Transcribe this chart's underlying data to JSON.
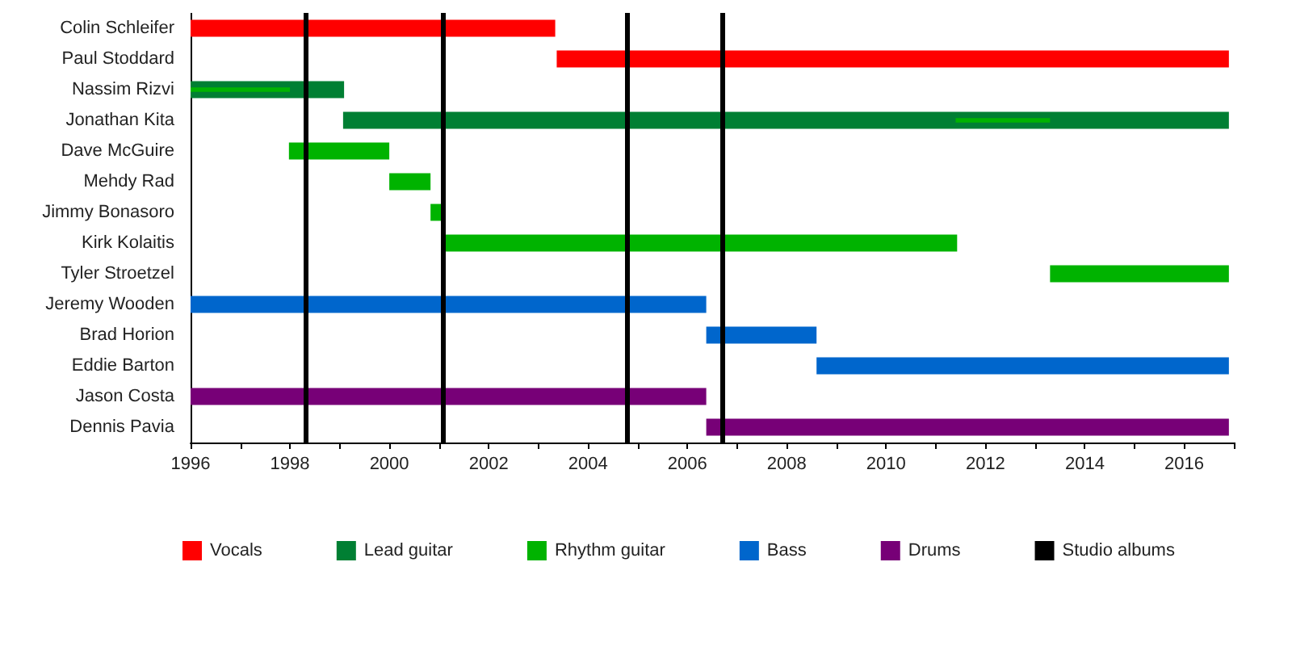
{
  "chart_data": {
    "type": "bar",
    "orientation": "horizontal",
    "categories": [
      "Colin Schleifer",
      "Paul Stoddard",
      "Nassim Rizvi",
      "Jonathan Kita",
      "Dave McGuire",
      "Mehdy Rad",
      "Jimmy Bonasoro",
      "Kirk Kolaitis",
      "Tyler Stroetzel",
      "Jeremy Wooden",
      "Brad Horion",
      "Eddie Barton",
      "Jason Costa",
      "Dennis Pavia"
    ],
    "series": [
      {
        "name": "Vocals",
        "color": "#ff0000",
        "base": [
          1996,
          2003.37,
          null,
          null,
          null,
          null,
          null,
          null,
          null,
          null,
          null,
          null,
          null,
          null
        ],
        "values": [
          7.34,
          13.53,
          null,
          null,
          null,
          null,
          null,
          null,
          null,
          null,
          null,
          null,
          null,
          null
        ]
      },
      {
        "name": "Lead guitar",
        "color": "#007f33",
        "base": [
          null,
          null,
          1996,
          1999.07,
          null,
          null,
          null,
          null,
          null,
          null,
          null,
          null,
          null,
          null
        ],
        "values": [
          null,
          null,
          3.09,
          17.83,
          null,
          null,
          null,
          null,
          null,
          null,
          null,
          null,
          null,
          null
        ]
      },
      {
        "name": "Rhythm guitar",
        "color": "#00b300",
        "base": [
          null,
          null,
          null,
          null,
          1997.98,
          2000.0,
          2000.83,
          2001.07,
          2013.3,
          null,
          null,
          null,
          null,
          null
        ],
        "values": [
          null,
          null,
          null,
          null,
          2.02,
          0.83,
          0.26,
          10.36,
          3.6,
          null,
          null,
          null,
          null,
          null
        ]
      },
      {
        "color": "#00b300",
        "base": [
          null,
          null,
          1996,
          2011.4,
          null,
          null,
          null,
          null,
          null,
          null,
          null,
          null,
          null,
          null
        ],
        "values": [
          null,
          null,
          2.0,
          1.9,
          null,
          null,
          null,
          null,
          null,
          null,
          null,
          null,
          null,
          null
        ]
      },
      {
        "name": "Bass",
        "color": "#0066cc",
        "base": [
          null,
          null,
          null,
          null,
          null,
          null,
          null,
          null,
          null,
          1996,
          2006.38,
          2008.6,
          null,
          null
        ],
        "values": [
          null,
          null,
          null,
          null,
          null,
          null,
          null,
          null,
          null,
          10.38,
          2.22,
          8.3,
          null,
          null
        ]
      },
      {
        "name": "Drums",
        "color": "#770077",
        "base": [
          null,
          null,
          null,
          null,
          null,
          null,
          null,
          null,
          null,
          null,
          null,
          null,
          1996,
          2006.38
        ],
        "values": [
          null,
          null,
          null,
          null,
          null,
          null,
          null,
          null,
          null,
          null,
          null,
          null,
          10.38,
          10.52
        ]
      }
    ],
    "xlim": [
      1996,
      2017
    ],
    "xticks": [
      1996,
      {
        "value": 1997,
        "label": null
      },
      1998,
      {
        "value": 1999,
        "label": null
      },
      2000,
      {
        "value": 2001,
        "label": null
      },
      2002,
      {
        "value": 2003,
        "label": null
      },
      2004,
      {
        "value": 2005,
        "label": null
      },
      2006,
      {
        "value": 2007,
        "label": null
      },
      2008,
      {
        "value": 2009,
        "label": null
      },
      2010,
      {
        "value": 2011,
        "label": null
      },
      2012,
      {
        "value": 2013,
        "label": null
      },
      2014,
      {
        "value": 2015,
        "label": null
      },
      2016,
      {
        "value": 2017,
        "label": null
      }
    ],
    "ref_lines": [
      {
        "axis": "x",
        "value": 1998.3,
        "label": "Studio albums",
        "color": "#000000"
      },
      {
        "axis": "x",
        "value": 2001.09,
        "label": null,
        "color": "#000000"
      },
      {
        "axis": "x",
        "value": 2004.77,
        "label": null,
        "color": "#000000"
      },
      {
        "axis": "x",
        "value": 2006.7,
        "label": null,
        "color": "#000000"
      }
    ],
    "grid": false,
    "legend": "bottom"
  }
}
